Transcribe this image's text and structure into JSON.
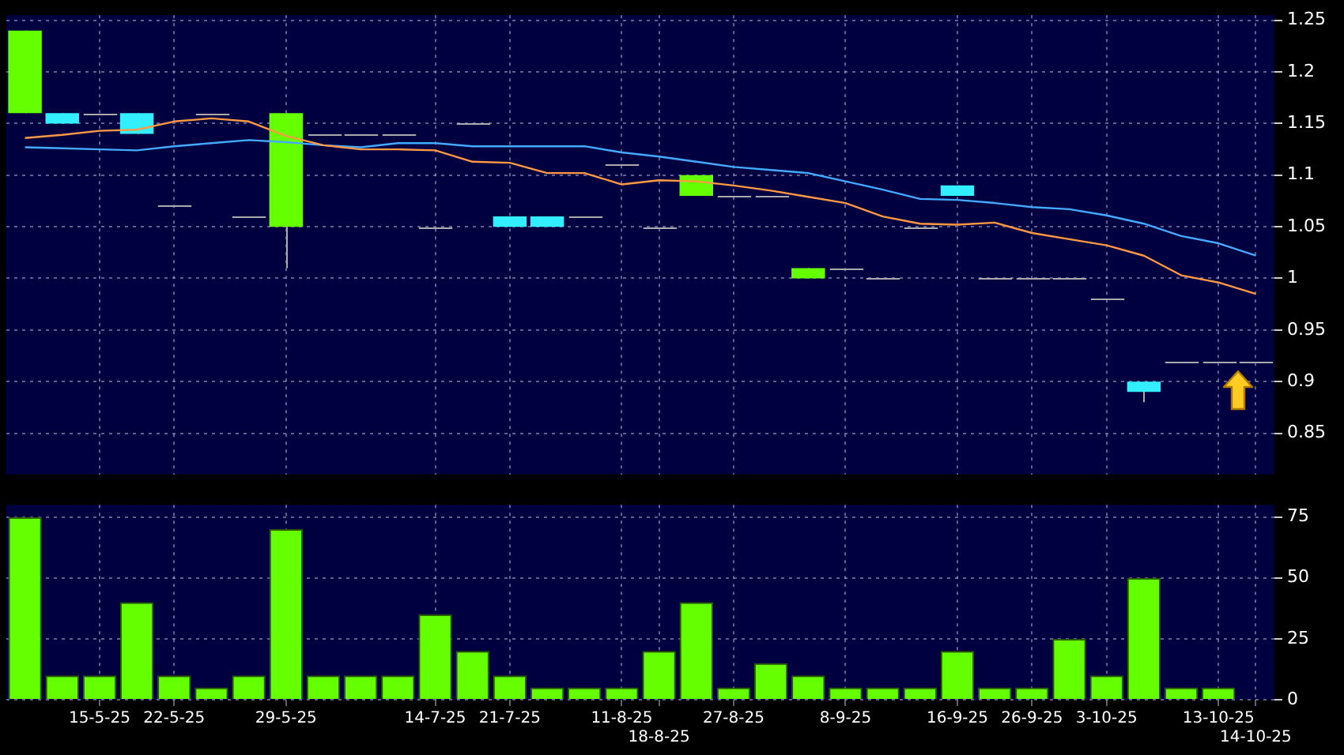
{
  "chart_data": [
    {
      "type": "candlestick",
      "categories": [
        null,
        null,
        null,
        null,
        null,
        null,
        null,
        null,
        null,
        null,
        null,
        null,
        null,
        null,
        null,
        null,
        null,
        null,
        null,
        null,
        null,
        null,
        null,
        null,
        null,
        null,
        null,
        null,
        null,
        null,
        null,
        null,
        null,
        null
      ],
      "ohlc": [
        [
          1.16,
          1.24,
          1.16,
          1.24
        ],
        [
          1.16,
          1.16,
          1.15,
          1.15
        ],
        [
          1.16,
          1.16,
          1.16,
          1.16
        ],
        [
          1.16,
          1.16,
          1.14,
          1.14
        ],
        [
          1.07,
          1.07,
          1.07,
          1.07
        ],
        [
          1.16,
          1.16,
          1.16,
          1.16
        ],
        [
          1.06,
          1.06,
          1.06,
          1.06
        ],
        [
          1.05,
          1.16,
          1.01,
          1.16
        ],
        [
          1.14,
          1.14,
          1.14,
          1.14
        ],
        [
          1.14,
          1.14,
          1.14,
          1.14
        ],
        [
          1.14,
          1.14,
          1.14,
          1.14
        ],
        [
          1.05,
          1.05,
          1.05,
          1.05
        ],
        [
          1.15,
          1.15,
          1.15,
          1.15
        ],
        [
          1.06,
          1.06,
          1.05,
          1.05
        ],
        [
          1.06,
          1.06,
          1.05,
          1.05
        ],
        [
          1.06,
          1.06,
          1.06,
          1.06
        ],
        [
          1.11,
          1.11,
          1.11,
          1.11
        ],
        [
          1.05,
          1.05,
          1.05,
          1.05
        ],
        [
          1.08,
          1.1,
          1.08,
          1.1
        ],
        [
          1.08,
          1.08,
          1.08,
          1.08
        ],
        [
          1.08,
          1.08,
          1.08,
          1.08
        ],
        [
          1.0,
          1.01,
          1.0,
          1.01
        ],
        [
          1.01,
          1.01,
          1.01,
          1.01
        ],
        [
          1.0,
          1.0,
          1.0,
          1.0
        ],
        [
          1.05,
          1.05,
          1.05,
          1.05
        ],
        [
          1.09,
          1.09,
          1.08,
          1.08
        ],
        [
          1.0,
          1.0,
          1.0,
          1.0
        ],
        [
          1.0,
          1.0,
          1.0,
          1.0
        ],
        [
          1.0,
          1.0,
          1.0,
          1.0
        ],
        [
          0.98,
          0.98,
          0.98,
          0.98
        ],
        [
          0.9,
          0.9,
          0.88,
          0.89
        ],
        [
          0.92,
          0.92,
          0.92,
          0.92
        ],
        [
          0.92,
          0.92,
          0.92,
          0.92
        ],
        [
          0.92,
          0.92,
          0.92,
          0.92
        ]
      ],
      "colors": [
        "#66ff00",
        "#33eeff",
        "#aaaaaa",
        "#33eeff",
        "#aaaaaa",
        "#aaaaaa",
        "#aaaaaa",
        "#66ff00",
        "#aaaaaa",
        "#aaaaaa",
        "#aaaaaa",
        "#aaaaaa",
        "#aaaaaa",
        "#33eeff",
        "#33eeff",
        "#aaaaaa",
        "#aaaaaa",
        "#aaaaaa",
        "#66ff00",
        "#aaaaaa",
        "#aaaaaa",
        "#66ff00",
        "#aaaaaa",
        "#aaaaaa",
        "#aaaaaa",
        "#33eeff",
        "#aaaaaa",
        "#aaaaaa",
        "#aaaaaa",
        "#aaaaaa",
        "#33eeff",
        "#aaaaaa",
        "#aaaaaa",
        "#aaaaaa"
      ],
      "series": [
        {
          "type": "line",
          "color": "#ff9944",
          "values": [
            1.136,
            1.139,
            1.143,
            1.144,
            1.152,
            1.155,
            1.152,
            1.138,
            1.129,
            1.125,
            1.125,
            1.124,
            1.113,
            1.112,
            1.102,
            1.102,
            1.091,
            1.095,
            1.094,
            1.09,
            1.085,
            1.079,
            1.073,
            1.06,
            1.053,
            1.052,
            1.054,
            1.044,
            1.038,
            1.032,
            1.022,
            1.003,
            0.996,
            0.985
          ]
        },
        {
          "type": "line",
          "color": "#44aaff",
          "values": [
            1.127,
            1.126,
            1.125,
            1.124,
            1.128,
            1.131,
            1.134,
            1.132,
            1.129,
            1.127,
            1.131,
            1.131,
            1.128,
            1.128,
            1.128,
            1.128,
            1.122,
            1.118,
            1.113,
            1.108,
            1.105,
            1.102,
            1.094,
            1.086,
            1.077,
            1.076,
            1.073,
            1.069,
            1.067,
            1.061,
            1.053,
            1.041,
            1.034,
            1.022
          ]
        }
      ],
      "ylim": [
        0.81,
        1.255
      ],
      "yticks": [
        0.85,
        0.9,
        0.95,
        1,
        1.05,
        1.1,
        1.15,
        1.2,
        1.25
      ],
      "grid": true,
      "tick_labels": "y",
      "marker": "none"
    },
    {
      "type": "bar",
      "categories": [
        null,
        null,
        "15-5-25",
        null,
        "22-5-25",
        null,
        null,
        "29-5-25",
        null,
        null,
        null,
        "14-7-25",
        null,
        "21-7-25",
        null,
        null,
        "11-8-25",
        "18-8-25",
        null,
        "27-8-25",
        null,
        null,
        "8-9-25",
        null,
        null,
        "16-9-25",
        null,
        "26-9-25",
        null,
        "3-10-25",
        null,
        null,
        "13-10-25",
        "14-10-25"
      ],
      "values": [
        75,
        10,
        10,
        40,
        10,
        5,
        10,
        70,
        10,
        10,
        10,
        35,
        20,
        10,
        5,
        5,
        5,
        20,
        40,
        5,
        15,
        10,
        5,
        5,
        5,
        20,
        5,
        5,
        25,
        10,
        50,
        5,
        5,
        null
      ],
      "color": "#66ff00",
      "ylim": [
        0,
        80
      ],
      "yticks": [
        0,
        25,
        50,
        75
      ],
      "grid": true
    }
  ]
}
